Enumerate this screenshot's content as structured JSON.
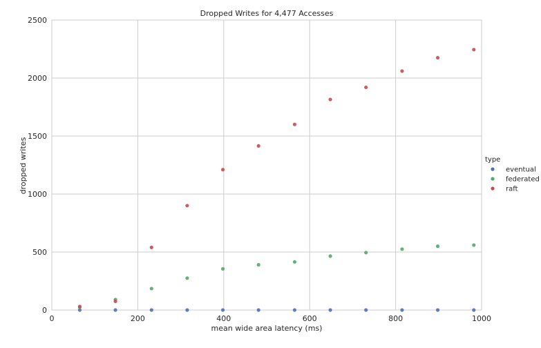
{
  "chart_data": {
    "type": "scatter",
    "title": "Dropped Writes for 4,477 Accesses",
    "xlabel": "mean wide area latency (ms)",
    "ylabel": "dropped writes",
    "xlim": [
      0,
      1000
    ],
    "ylim": [
      0,
      2500
    ],
    "xticks": [
      "0",
      "200",
      "400",
      "600",
      "800",
      "1000"
    ],
    "yticks": [
      "0",
      "500",
      "1000",
      "1500",
      "2000",
      "2500"
    ],
    "grid": true,
    "legend": {
      "title": "type",
      "placement": "right"
    },
    "x": [
      65,
      148,
      232,
      315,
      398,
      481,
      565,
      648,
      731,
      815,
      898,
      982
    ],
    "series": [
      {
        "name": "eventual",
        "color": "#4c72b0",
        "values": [
          0,
          0,
          0,
          0,
          0,
          0,
          0,
          0,
          0,
          0,
          0,
          0
        ]
      },
      {
        "name": "federated",
        "color": "#55a868",
        "values": [
          25,
          90,
          185,
          275,
          355,
          390,
          415,
          465,
          495,
          525,
          550,
          560
        ]
      },
      {
        "name": "raft",
        "color": "#c44e52",
        "values": [
          30,
          75,
          540,
          900,
          1210,
          1415,
          1600,
          1815,
          1920,
          2060,
          2175,
          2245
        ]
      }
    ]
  }
}
